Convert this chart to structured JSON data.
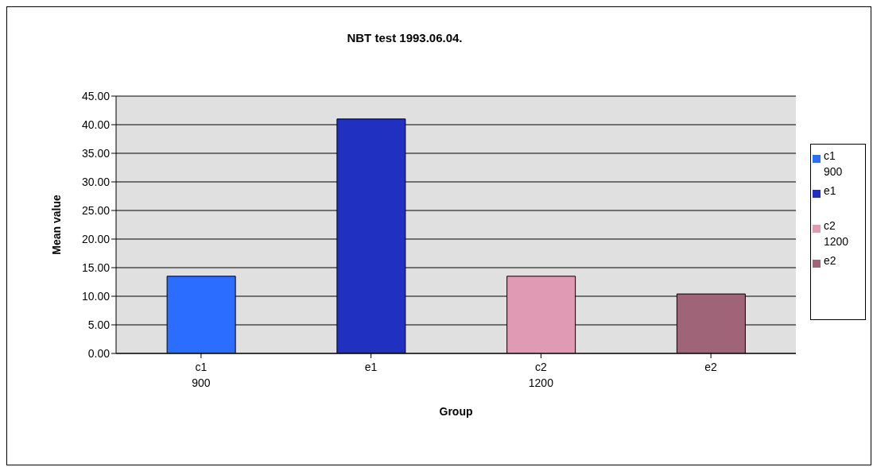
{
  "chart_data": {
    "type": "bar",
    "title": "NBT test 1993.06.04.",
    "xlabel": "Group",
    "ylabel": "Mean value",
    "categories": [
      "c1\n900",
      "e1",
      "c2\n1200",
      "e2"
    ],
    "stacked": true,
    "series": [
      {
        "name": "c1\n900",
        "color": "#2b6dff",
        "values": [
          13.5,
          null,
          null,
          null
        ]
      },
      {
        "name": "e1",
        "color": "#2030c0",
        "values": [
          null,
          41,
          null,
          null
        ]
      },
      {
        "name": "c2\n1200",
        "color": "#e09ab4",
        "values": [
          null,
          null,
          13.5,
          null
        ]
      },
      {
        "name": "e2",
        "color": "#a06478",
        "values": [
          null,
          null,
          null,
          10.4
        ]
      }
    ],
    "ylim": [
      0,
      45
    ],
    "yticks": [
      {
        "value": 0,
        "label": "0.00"
      },
      {
        "value": 5,
        "label": "5.00"
      },
      {
        "value": 10,
        "label": "10.00"
      },
      {
        "value": 15,
        "label": "15.00"
      },
      {
        "value": 20,
        "label": "20.00"
      },
      {
        "value": 25,
        "label": "25.00"
      },
      {
        "value": 30,
        "label": "30.00"
      },
      {
        "value": 35,
        "label": "35.00"
      },
      {
        "value": 40,
        "label": "40.00"
      },
      {
        "value": 45,
        "label": "45.00"
      }
    ],
    "grid": "y",
    "legend": "right"
  }
}
